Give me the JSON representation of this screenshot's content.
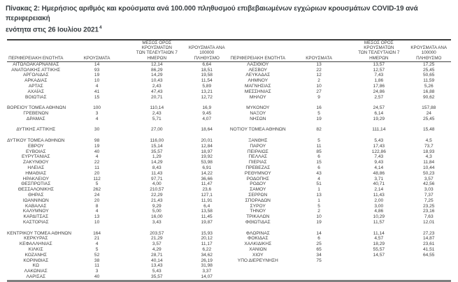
{
  "title_line1": "Πίνακας 2: Ημερήσιος αριθμός και κρούσματα ανά 100.000 πληθυσμού επιβεβαιωμένων εγχώριων κρουσμάτων COVID-19 ανά περιφερειακή",
  "title_line2": "ενότητα στις 26 Ιουλίου 2021",
  "title_footnote": "4",
  "columns": {
    "region": "ΠΕΡΙΦΕΡΕΙΑΚΗ ΕΝΟΤΗΤΑ",
    "cases": "ΚΡΟΥΣΜΑΤΑ",
    "avg7": "ΜΕΣΟΣ ΟΡΟΣ ΚΡΟΥΣΜΑΤΩΝ\nΤΩΝ ΤΕΛΕΥΤΑΙΩΝ 7\nΗΜΕΡΩΝ",
    "per100k": "ΚΡΟΥΣΜΑΤΑ ΑΝΑ 100000\nΠΛΗΘΥΣΜΟ"
  },
  "left_table": {
    "rows": [
      [
        "ΑΙΤΩΛΟΑΚΑΡΝΑΝΙΑΣ",
        "14",
        "12,14",
        "6,64"
      ],
      [
        "ΑΝΑΤΟΛΙΚΗΣ ΑΤΤΙΚΗΣ",
        "93",
        "86,29",
        "18,51"
      ],
      [
        "ΑΡΓΟΛΙΔΑΣ",
        "19",
        "14,29",
        "19,58"
      ],
      [
        "ΑΡΚΑΔΙΑΣ",
        "10",
        "10,43",
        "11,54"
      ],
      [
        "ΑΡΤΑΣ",
        "4",
        "2,43",
        "5,89"
      ],
      [
        "ΑΧΑΪΑΣ",
        "41",
        "47,43",
        "13,21"
      ],
      [
        "ΒΟΙΩΤΙΑΣ",
        "15",
        "20,71",
        "12,72"
      ],
      [],
      [
        "ΒΟΡΕΙΟΥ ΤΟΜΕΑ ΑΘΗΝΩΝ",
        "100",
        "110,14",
        "16,9"
      ],
      [
        "ΓΡΕΒΕΝΩΝ",
        "3",
        "2,43",
        "9,45"
      ],
      [
        "ΔΡΑΜΑΣ",
        "4",
        "5,71",
        "4,07"
      ],
      [],
      [
        "ΔΥΤΙΚΗΣ ΑΤΤΙΚΗΣ",
        "30",
        "27,00",
        "18,64"
      ],
      [],
      [
        "ΔΥΤΙΚΟΥ ΤΟΜΕΑ ΑΘΗΝΩΝ",
        "98",
        "116,00",
        "20,01"
      ],
      [
        "ΕΒΡΟΥ",
        "19",
        "15,14",
        "12,84"
      ],
      [
        "ΕΥΒΟΙΑΣ",
        "40",
        "35,57",
        "18,97"
      ],
      [
        "ΕΥΡΥΤΑΝΙΑΣ",
        "4",
        "1,29",
        "19,92"
      ],
      [
        "ΖΑΚΥΝΘΟΥ",
        "22",
        "14,29",
        "53,98"
      ],
      [
        "ΗΛΕΙΑΣ",
        "11",
        "8,43",
        "6,91"
      ],
      [
        "ΗΜΑΘΙΑΣ",
        "20",
        "11,43",
        "14,22"
      ],
      [
        "ΗΡΑΚΛΕΙΟΥ",
        "112",
        "97,71",
        "36,66"
      ],
      [
        "ΘΕΣΠΡΩΤΙΑΣ",
        "5",
        "4,00",
        "11,47"
      ],
      [
        "ΘΕΣΣΑΛΟΝΙΚΗΣ",
        "262",
        "210,57",
        "23,6"
      ],
      [
        "ΘΗΡΑΣ",
        "24",
        "22,29",
        "127,1"
      ],
      [
        "ΙΩΑΝΝΙΝΩΝ",
        "20",
        "21,43",
        "11,91"
      ],
      [
        "ΚΑΒΑΛΑΣ",
        "8",
        "9,29",
        "6,4"
      ],
      [
        "ΚΑΛΥΜΝΟΥ",
        "4",
        "5,00",
        "13,58"
      ],
      [
        "ΚΑΡΔΙΤΣΑΣ",
        "13",
        "16,00",
        "11,45"
      ],
      [
        "ΚΑΣΤΟΡΙΑΣ",
        "10",
        "3,43",
        "19,87"
      ],
      [],
      [
        "ΚΕΝΤΡΙΚΟΥ ΤΟΜΕΑ ΑΘΗΝΩΝ",
        "164",
        "203,57",
        "15,93"
      ],
      [
        "ΚΕΡΚΥΡΑΣ",
        "21",
        "21,29",
        "20,12"
      ],
      [
        "ΚΕΦΑΛΛΗΝΙΑΣ",
        "4",
        "3,57",
        "11,17"
      ],
      [
        "ΚΙΛΚΙΣ",
        "5",
        "4,29",
        "6,22"
      ],
      [
        "ΚΟΖΑΝΗΣ",
        "52",
        "28,71",
        "34,62"
      ],
      [
        "ΚΟΡΙΝΘΙΑΣ",
        "38",
        "40,14",
        "26,19"
      ],
      [
        "ΚΩ",
        "11",
        "13,43",
        "31,98"
      ],
      [
        "ΛΑΚΩΝΙΑΣ",
        "3",
        "5,43",
        "3,37"
      ],
      [
        "ΛΑΡΙΣΑΣ",
        "40",
        "35,57",
        "14,07"
      ]
    ]
  },
  "right_table": {
    "rows": [
      [
        "ΛΑΣΙΘΙΟΥ",
        "13",
        "13,57",
        "17,25"
      ],
      [
        "ΛΕΣΒΟΥ",
        "22",
        "12,57",
        "25,45"
      ],
      [
        "ΛΕΥΚΑΔΑΣ",
        "12",
        "7,43",
        "50,65"
      ],
      [
        "ΛΗΜΝΟΥ",
        "2",
        "1,86",
        "11,59"
      ],
      [
        "ΜΑΓΝΗΣΙΑΣ",
        "10",
        "17,86",
        "5,26"
      ],
      [
        "ΜΕΣΣΗΝΙΑΣ",
        "27",
        "24,86",
        "16,88"
      ],
      [
        "ΜΗΛΟΥ",
        "9",
        "2,57",
        "90,62"
      ],
      [],
      [
        "ΜΥΚΟΝΟΥ",
        "16",
        "24,57",
        "157,88"
      ],
      [
        "ΝΑΞΟΥ",
        "5",
        "6,14",
        "24"
      ],
      [
        "ΝΗΣΩΝ",
        "19",
        "19,29",
        "25,45"
      ],
      [],
      [
        "ΝΟΤΙΟΥ ΤΟΜΕΑ ΑΘΗΝΩΝ",
        "82",
        "111,14",
        "15,48"
      ],
      [],
      [
        "ΞΑΝΘΗΣ",
        "5",
        "5,43",
        "4,5"
      ],
      [
        "ΠΑΡΟΥ",
        "11",
        "17,43",
        "73,7"
      ],
      [
        "ΠΕΙΡΑΙΩΣ",
        "85",
        "122,86",
        "18,93"
      ],
      [
        "ΠΕΛΛΑΣ",
        "6",
        "7,43",
        "4,3"
      ],
      [
        "ΠΙΕΡΙΑΣ",
        "15",
        "9,43",
        "11,84"
      ],
      [
        "ΠΡΕΒΕΖΑΣ",
        "6",
        "4,14",
        "10,44"
      ],
      [
        "ΡΕΘΥΜΝΟΥ",
        "43",
        "48,86",
        "50,23"
      ],
      [
        "ΡΟΔΟΠΗΣ",
        "4",
        "3,71",
        "3,57"
      ],
      [
        "ΡΟΔΟΥ",
        "51",
        "40,71",
        "42,56"
      ],
      [
        "ΣΑΜΟΥ",
        "1",
        "2,14",
        "3,03"
      ],
      [
        "ΣΕΡΡΩΝ",
        "13",
        "11,43",
        "7,37"
      ],
      [
        "ΣΠΟΡΑΔΩΝ",
        "1",
        "2,00",
        "7,25"
      ],
      [
        "ΣΥΡΟΥ",
        "5",
        "3,00",
        "23,25"
      ],
      [
        "ΤΗΝΟΥ",
        "2",
        "4,86",
        "23,16"
      ],
      [
        "ΤΡΙΚΑΛΩΝ",
        "10",
        "10,29",
        "7,63"
      ],
      [
        "ΦΘΙΩΤΙΔΑΣ",
        "19",
        "11,57",
        "12,01"
      ],
      [],
      [
        "ΦΛΩΡΙΝΑΣ",
        "14",
        "11,14",
        "27,23"
      ],
      [
        "ΦΟΚΙΔΑΣ",
        "6",
        "4,57",
        "14,87"
      ],
      [
        "ΧΑΛΚΙΔΙΚΗΣ",
        "25",
        "18,29",
        "23,61"
      ],
      [
        "ΧΑΝΙΩΝ",
        "65",
        "55,57",
        "41,51"
      ],
      [
        "ΧΙΟΥ",
        "34",
        "14,57",
        "64,55"
      ],
      [
        "ΥΠΟ ΔΙΕΡΕΥΝΗΣΗ",
        "75",
        "",
        ""
      ]
    ]
  }
}
